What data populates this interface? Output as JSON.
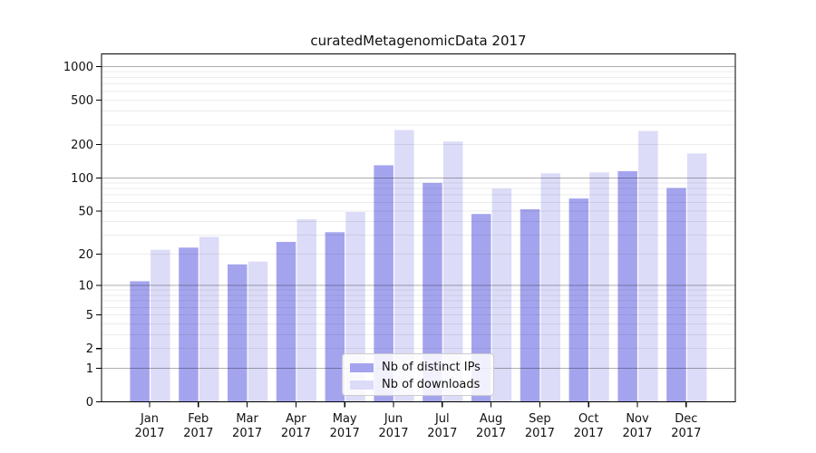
{
  "chart_data": {
    "type": "bar",
    "title": "curatedMetagenomicData 2017",
    "categories": [
      "Jan",
      "Feb",
      "Mar",
      "Apr",
      "May",
      "Jun",
      "Jul",
      "Aug",
      "Sep",
      "Oct",
      "Nov",
      "Dec"
    ],
    "category_year": "2017",
    "series": [
      {
        "name": "Nb of distinct IPs",
        "color": "#a4a4ee",
        "values": [
          11,
          23,
          16,
          26,
          32,
          130,
          90,
          47,
          52,
          65,
          115,
          81
        ]
      },
      {
        "name": "Nb of downloads",
        "color": "#dcdcf8",
        "values": [
          22,
          29,
          17,
          42,
          49,
          270,
          213,
          80,
          110,
          112,
          265,
          166
        ]
      }
    ],
    "yticks": [
      0,
      1,
      2,
      5,
      10,
      20,
      50,
      100,
      200,
      500,
      1000
    ],
    "scale": "log10(1+x)",
    "ylim": [
      0,
      1300
    ],
    "grid": "horizontal major+minor",
    "legend_position": "inside-bottom-center",
    "axis_color": "#000000",
    "major_grid_color": "#adadad",
    "minor_grid_color": "#ebebeb"
  }
}
